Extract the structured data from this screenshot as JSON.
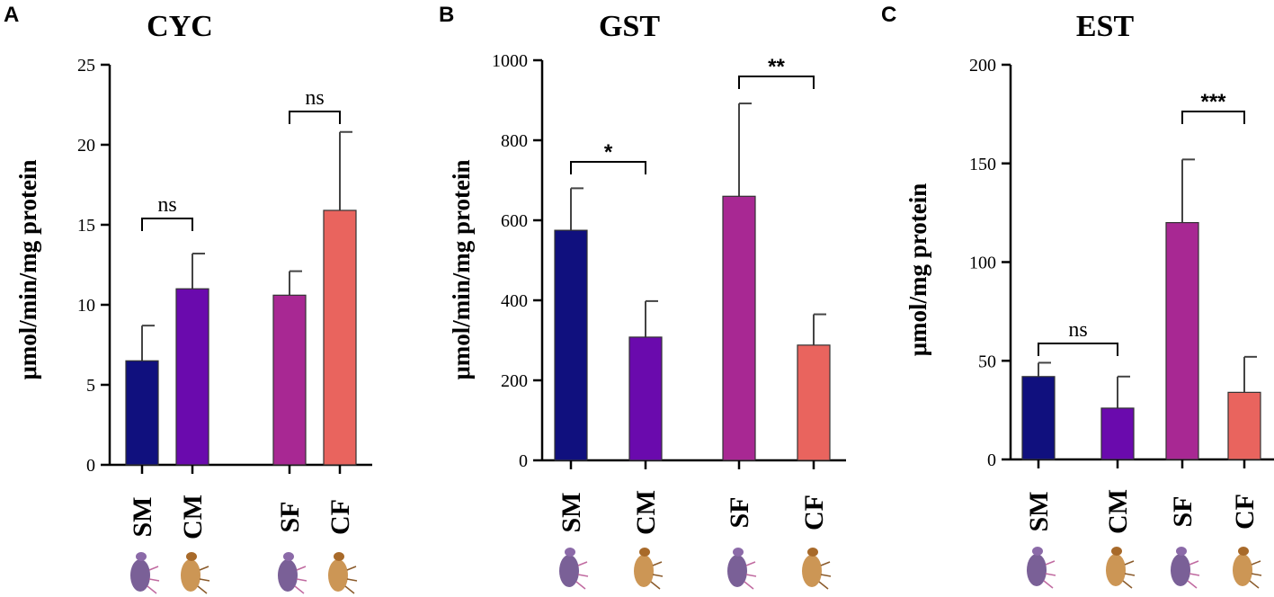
{
  "chart_data": [
    {
      "type": "bar",
      "panel": "A",
      "title": "CYC",
      "ylabel": "μmol/min/mg  protein",
      "ylim": [
        0,
        25
      ],
      "yticks": [
        0,
        5,
        10,
        15,
        20,
        25
      ],
      "categories": [
        "SM",
        "CM",
        "SF",
        "CF"
      ],
      "values": [
        6.5,
        11.0,
        10.6,
        15.9
      ],
      "errors": [
        2.2,
        2.2,
        1.5,
        4.9
      ],
      "colors": [
        "#10107e",
        "#6a0aad",
        "#a82893",
        "#e9645e"
      ],
      "comparisons": [
        {
          "pair": [
            "SM",
            "CM"
          ],
          "label": "ns"
        },
        {
          "pair": [
            "SF",
            "CF"
          ],
          "label": "ns"
        }
      ]
    },
    {
      "type": "bar",
      "panel": "B",
      "title": "GST",
      "ylabel": "μmol/min/mg  protein",
      "ylim": [
        0,
        1000
      ],
      "yticks": [
        0,
        200,
        400,
        600,
        800,
        1000
      ],
      "categories": [
        "SM",
        "CM",
        "SF",
        "CF"
      ],
      "values": [
        575,
        308,
        660,
        288
      ],
      "errors": [
        105,
        90,
        232,
        77
      ],
      "colors": [
        "#10107e",
        "#6a0aad",
        "#a82893",
        "#e9645e"
      ],
      "comparisons": [
        {
          "pair": [
            "SM",
            "CM"
          ],
          "label": "*"
        },
        {
          "pair": [
            "SF",
            "CF"
          ],
          "label": "**"
        }
      ]
    },
    {
      "type": "bar",
      "panel": "C",
      "title": "EST",
      "ylabel": "μmol/mg protein",
      "ylim": [
        0,
        200
      ],
      "yticks": [
        0,
        50,
        100,
        150,
        200
      ],
      "categories": [
        "SM",
        "CM",
        "SF",
        "CF"
      ],
      "values": [
        42,
        26,
        120,
        34
      ],
      "errors": [
        7,
        16,
        32,
        18
      ],
      "colors": [
        "#10107e",
        "#6a0aad",
        "#a82893",
        "#e9645e"
      ],
      "comparisons": [
        {
          "pair": [
            "SM",
            "CM"
          ],
          "label": "ns"
        },
        {
          "pair": [
            "SF",
            "CF"
          ],
          "label": "***"
        }
      ]
    }
  ]
}
